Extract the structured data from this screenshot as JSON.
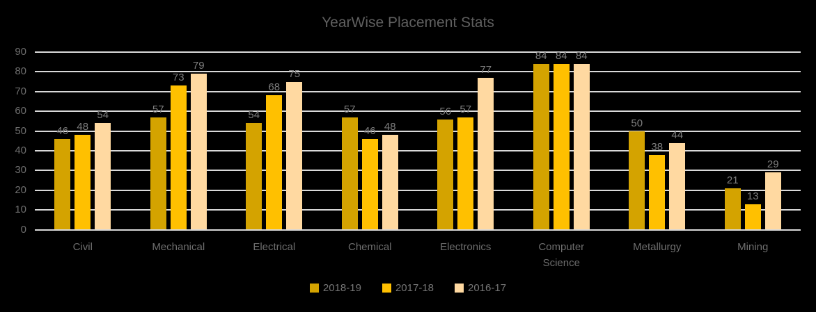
{
  "colors": {
    "background": "#000000",
    "gridline": "#D9D9D9",
    "title_text": "#5F5F5F",
    "axis_text": "#6E6E6E",
    "data_label_text": "#7E7E7E",
    "legend_text": "#767676"
  },
  "chart_data": {
    "type": "bar",
    "title": "YearWise Placement Stats",
    "categories": [
      "Civil",
      "Mechanical",
      "Electrical",
      "Chemical",
      "Electronics",
      "Computer Science",
      "Metallurgy",
      "Mining"
    ],
    "series": [
      {
        "name": "2018-19",
        "color": "#D4A300",
        "values": [
          46,
          57,
          54,
          57,
          56,
          84,
          50,
          21
        ]
      },
      {
        "name": "2017-18",
        "color": "#FFC000",
        "values": [
          48,
          73,
          68,
          46,
          57,
          84,
          38,
          13
        ]
      },
      {
        "name": "2016-17",
        "color": "#FFD9A1",
        "values": [
          54,
          79,
          75,
          48,
          77,
          84,
          44,
          29
        ]
      }
    ],
    "ylim": [
      0,
      90
    ],
    "yticks": [
      0,
      10,
      20,
      30,
      40,
      50,
      60,
      70,
      80,
      90
    ],
    "grid": true,
    "data_labels": true,
    "legend_position": "bottom",
    "xlabel": "",
    "ylabel": ""
  }
}
